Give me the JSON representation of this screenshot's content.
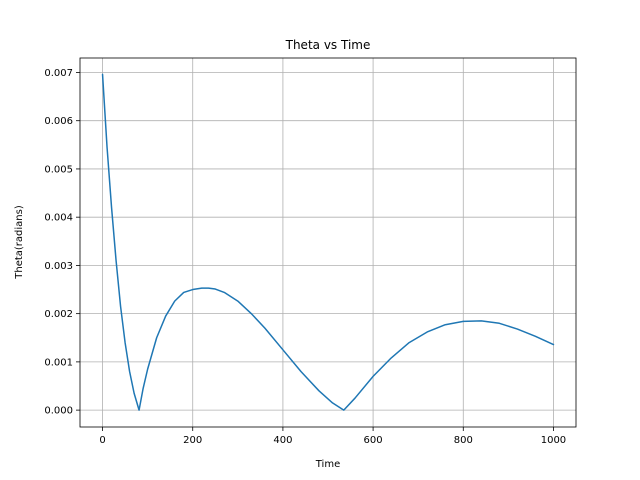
{
  "chart_data": {
    "type": "line",
    "title": "Theta vs Time",
    "xlabel": "Time",
    "ylabel": "Theta(radians)",
    "xlim": [
      -50,
      1050
    ],
    "ylim": [
      -0.00035,
      0.0073
    ],
    "xticks": [
      0,
      200,
      400,
      600,
      800,
      1000
    ],
    "xtick_labels": [
      "0",
      "200",
      "400",
      "600",
      "800",
      "1000"
    ],
    "yticks": [
      0.0,
      0.001,
      0.002,
      0.003,
      0.004,
      0.005,
      0.006,
      0.007
    ],
    "ytick_labels": [
      "0.000",
      "0.001",
      "0.002",
      "0.003",
      "0.004",
      "0.005",
      "0.006",
      "0.007"
    ],
    "grid": true,
    "legend": "none",
    "series": [
      {
        "color": "#1f77b4",
        "x": [
          0,
          10,
          20,
          30,
          40,
          50,
          60,
          70,
          81,
          90,
          100,
          120,
          140,
          160,
          180,
          200,
          220,
          235,
          250,
          270,
          300,
          330,
          360,
          400,
          440,
          480,
          510,
          535,
          560,
          600,
          640,
          680,
          720,
          760,
          800,
          840,
          880,
          920,
          960,
          1000
        ],
        "y": [
          0.00696,
          0.00545,
          0.0042,
          0.0031,
          0.00215,
          0.0014,
          0.0008,
          0.00035,
          0.0,
          0.00045,
          0.00085,
          0.0015,
          0.00195,
          0.00226,
          0.00244,
          0.0025,
          0.00253,
          0.00253,
          0.00251,
          0.00244,
          0.00226,
          0.002,
          0.0017,
          0.00125,
          0.0008,
          0.0004,
          0.00015,
          0.0,
          0.00025,
          0.0007,
          0.00108,
          0.0014,
          0.00162,
          0.00177,
          0.00184,
          0.00185,
          0.0018,
          0.00168,
          0.00153,
          0.00136
        ]
      }
    ]
  }
}
